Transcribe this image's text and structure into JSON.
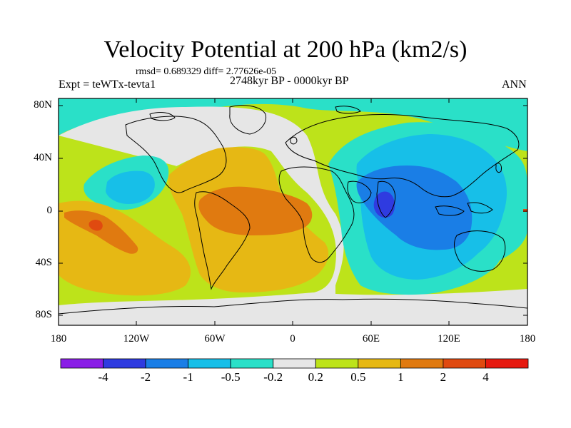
{
  "title": "Velocity Potential at 200 hPa (km2/s)",
  "stats_line": "rmsd= 0.689329 diff= 2.77626e-05",
  "left_label": "Expt = teWTx-tevta1",
  "center_label": "2748kyr BP - 0000kyr BP",
  "right_label": "ANN",
  "y_axis_labels": [
    "80N",
    "40N",
    "0",
    "40S",
    "80S"
  ],
  "x_axis_labels": [
    "180",
    "120W",
    "60W",
    "0",
    "60E",
    "120E",
    "180"
  ],
  "colorbar": {
    "labels": [
      "-4",
      "-2",
      "-1",
      "-0.5",
      "-0.2",
      "0.2",
      "0.5",
      "1",
      "2",
      "4"
    ],
    "colors": [
      "#8a1ee6",
      "#2f3be0",
      "#1a7ee6",
      "#17bfe8",
      "#2ae0c8",
      "#e6e6e6",
      "#bde31a",
      "#e6b814",
      "#e07a10",
      "#e04a10",
      "#e61a10"
    ]
  },
  "map": {
    "colors": {
      "ocean_base": "#bde31a",
      "neutral": "#e6e6e6",
      "cyan": "#2ae0c8",
      "light_blue": "#17bfe8",
      "mid_blue": "#1a7ee6",
      "dark_blue": "#2f3be0",
      "yellow": "#e6b814",
      "orange": "#e07a10",
      "red": "#e04a10",
      "coast": "#000000"
    }
  }
}
